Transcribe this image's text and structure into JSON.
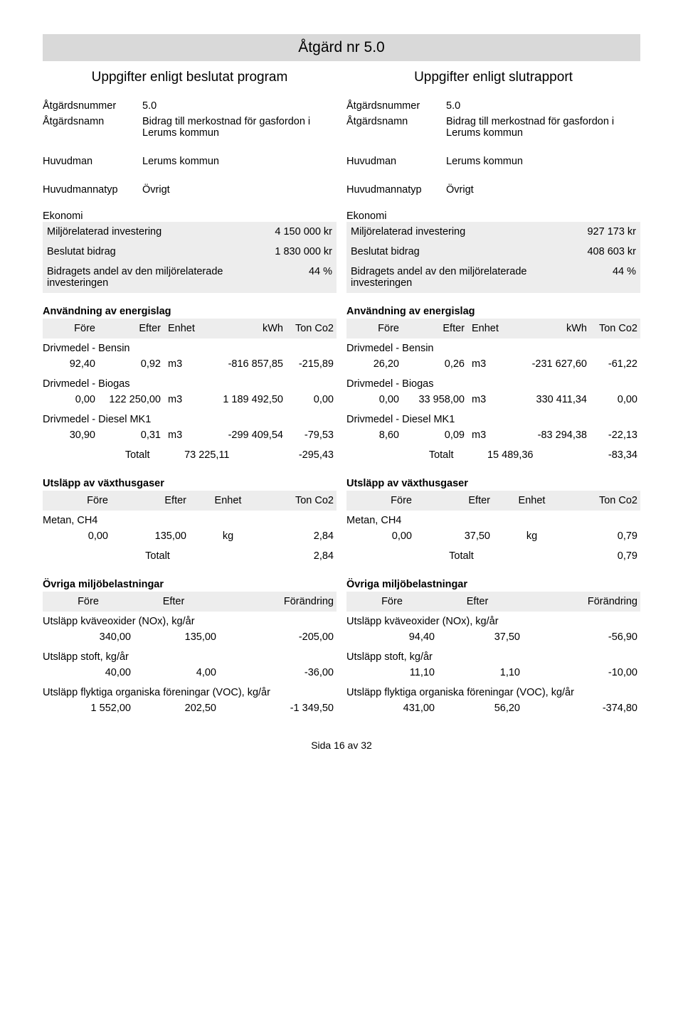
{
  "title": "Åtgärd nr  5.0",
  "subtitles": [
    "Uppgifter enligt beslutat program",
    "Uppgifter enligt slutrapport"
  ],
  "labels": {
    "atgardsnummer": "Åtgärdsnummer",
    "atgardsnamn": "Åtgärdsnamn",
    "huvudman": "Huvudman",
    "huvudmannatyp": "Huvudmannatyp",
    "ekonomi": "Ekonomi",
    "miljorel": "Miljörelaterad investering",
    "beslutat": "Beslutat bidrag",
    "andel": "Bidragets andel av den miljörelaterade investeringen",
    "anvandning": "Användning av energislag",
    "fore": "Före",
    "efter": "Efter",
    "enhet": "Enhet",
    "kwh": "kWh",
    "tonco2": "Ton Co2",
    "totalt": "Totalt",
    "utslappvaxthus": "Utsläpp av växthusgaser",
    "ovriga": "Övriga miljöbelastningar",
    "forandring": "Förändring"
  },
  "left": {
    "num": "5.0",
    "name": "Bidrag till merkostnad för gasfordon i Lerums kommun",
    "huvudman": "Lerums kommun",
    "huvudmannatyp": "Övrigt",
    "miljorel": "4 150 000 kr",
    "beslutat": "1 830 000 kr",
    "andel": "44 %",
    "fuel": [
      {
        "h": "Drivmedel - Bensin",
        "f": "92,40",
        "e": "0,92",
        "u": "m3",
        "k": "-816 857,85",
        "t": "-215,89"
      },
      {
        "h": "Drivmedel - Biogas",
        "f": "0,00",
        "e": "122 250,00",
        "u": "m3",
        "k": "1 189 492,50",
        "t": "0,00"
      },
      {
        "h": "Drivmedel - Diesel MK1",
        "f": "30,90",
        "e": "0,31",
        "u": "m3",
        "k": "-299 409,54",
        "t": "-79,53"
      }
    ],
    "fuel_tot": {
      "k": "73 225,11",
      "t": "-295,43"
    },
    "ghg": [
      {
        "h": "Metan, CH4",
        "f": "0,00",
        "e": "135,00",
        "u": "kg",
        "t": "2,84"
      }
    ],
    "ghg_tot": "2,84",
    "other": [
      {
        "h": "Utsläpp kväveoxider (NOx), kg/år",
        "f": "340,00",
        "e": "135,00",
        "c": "-205,00"
      },
      {
        "h": "Utsläpp stoft, kg/år",
        "f": "40,00",
        "e": "4,00",
        "c": "-36,00"
      },
      {
        "h": "Utsläpp flyktiga organiska föreningar (VOC), kg/år",
        "f": "1 552,00",
        "e": "202,50",
        "c": "-1 349,50"
      }
    ]
  },
  "right": {
    "num": "5.0",
    "name": "Bidrag till merkostnad för gasfordon i Lerums kommun",
    "huvudman": "Lerums kommun",
    "huvudmannatyp": "Övrigt",
    "miljorel": "927 173 kr",
    "beslutat": "408 603 kr",
    "andel": "44 %",
    "fuel": [
      {
        "h": "Drivmedel - Bensin",
        "f": "26,20",
        "e": "0,26",
        "u": "m3",
        "k": "-231 627,60",
        "t": "-61,22"
      },
      {
        "h": "Drivmedel - Biogas",
        "f": "0,00",
        "e": "33 958,00",
        "u": "m3",
        "k": "330 411,34",
        "t": "0,00"
      },
      {
        "h": "Drivmedel - Diesel MK1",
        "f": "8,60",
        "e": "0,09",
        "u": "m3",
        "k": "-83 294,38",
        "t": "-22,13"
      }
    ],
    "fuel_tot": {
      "k": "15 489,36",
      "t": "-83,34"
    },
    "ghg": [
      {
        "h": "Metan, CH4",
        "f": "0,00",
        "e": "37,50",
        "u": "kg",
        "t": "0,79"
      }
    ],
    "ghg_tot": "0,79",
    "other": [
      {
        "h": "Utsläpp kväveoxider (NOx), kg/år",
        "f": "94,40",
        "e": "37,50",
        "c": "-56,90"
      },
      {
        "h": "Utsläpp stoft, kg/år",
        "f": "11,10",
        "e": "1,10",
        "c": "-10,00"
      },
      {
        "h": "Utsläpp flyktiga organiska föreningar (VOC), kg/år",
        "f": "431,00",
        "e": "56,20",
        "c": "-374,80"
      }
    ]
  },
  "footer": "Sida  16 av 32"
}
